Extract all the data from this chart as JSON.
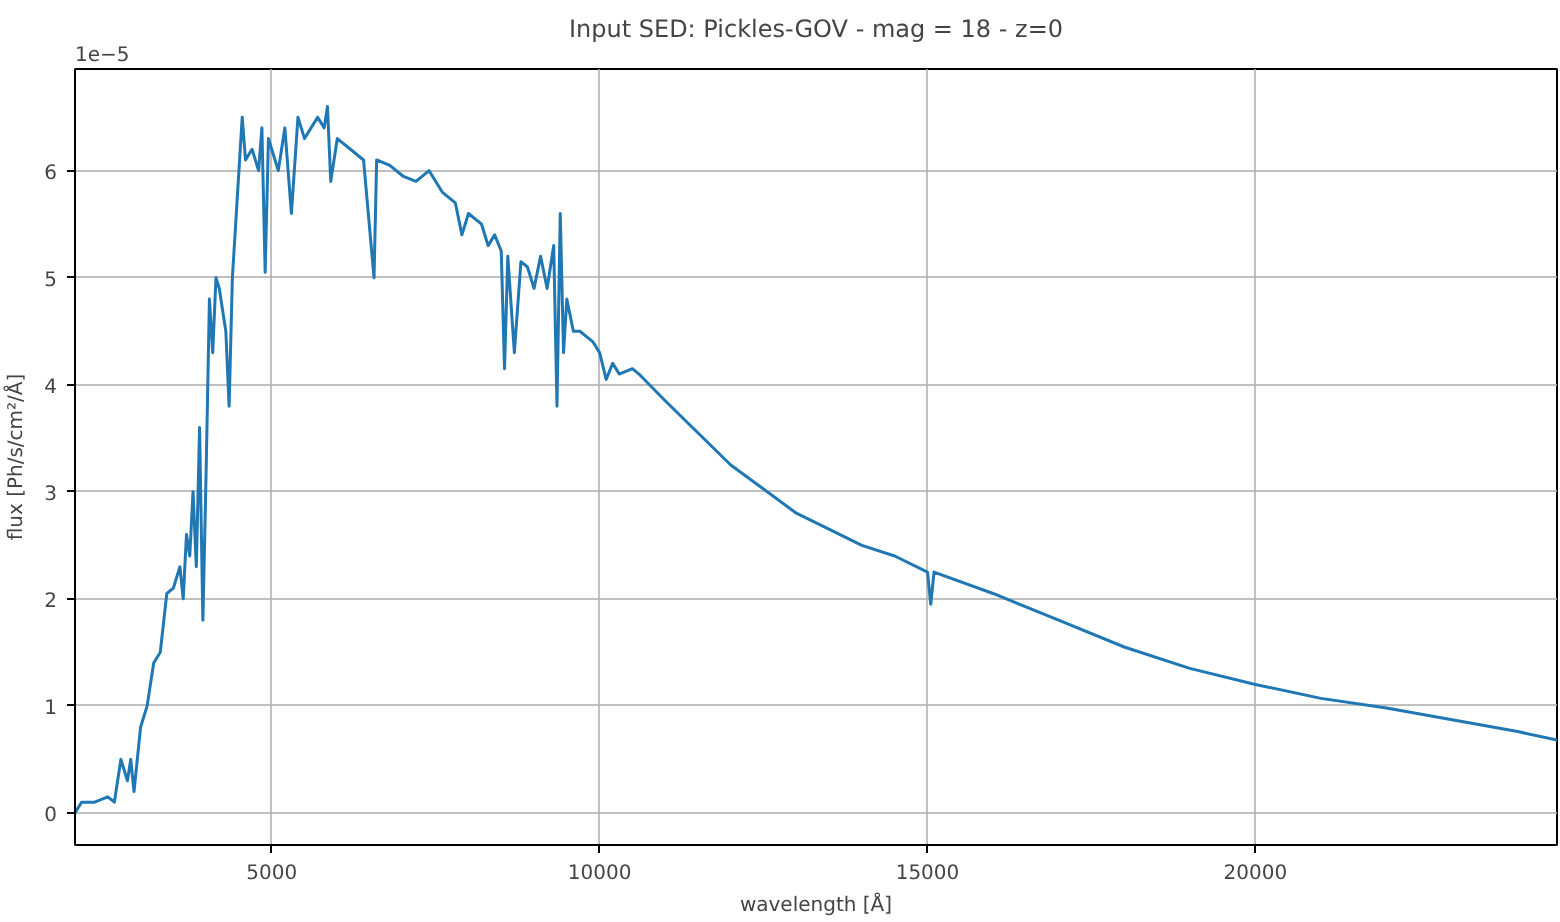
{
  "chart_data": {
    "type": "line",
    "title": "Input SED: Pickles-GOV - mag = 18 - z=0",
    "xlabel": "wavelength [Å]",
    "ylabel": "flux [Ph/s/cm²/Å]",
    "annotations": [
      "1e−5"
    ],
    "x": [
      2000,
      2100,
      2300,
      2500,
      2600,
      2700,
      2800,
      2850,
      2900,
      3000,
      3100,
      3200,
      3300,
      3400,
      3500,
      3600,
      3650,
      3700,
      3750,
      3800,
      3850,
      3900,
      3950,
      4000,
      4050,
      4100,
      4150,
      4200,
      4300,
      4350,
      4400,
      4450,
      4500,
      4550,
      4600,
      4700,
      4800,
      4850,
      4900,
      4950,
      5000,
      5100,
      5200,
      5300,
      5400,
      5500,
      5600,
      5700,
      5800,
      5850,
      5900,
      6000,
      6200,
      6400,
      6560,
      6600,
      6800,
      7000,
      7200,
      7400,
      7600,
      7800,
      7900,
      8000,
      8200,
      8300,
      8400,
      8500,
      8550,
      8600,
      8700,
      8800,
      8900,
      9000,
      9100,
      9200,
      9300,
      9350,
      9400,
      9450,
      9500,
      9600,
      9700,
      9800,
      9900,
      10000,
      10100,
      10200,
      10300,
      10500,
      10600,
      11000,
      12000,
      13000,
      14000,
      14500,
      15000,
      15050,
      15100,
      16000,
      17000,
      18000,
      19000,
      20000,
      21000,
      22000,
      23000,
      24000,
      24600
    ],
    "series": [
      {
        "color": "#1f77b4",
        "values": [
          0.0,
          0.1,
          0.1,
          0.15,
          0.1,
          0.5,
          0.3,
          0.5,
          0.2,
          0.8,
          1.0,
          1.4,
          1.5,
          2.05,
          2.1,
          2.3,
          2.0,
          2.6,
          2.4,
          3.0,
          2.3,
          3.6,
          1.8,
          3.2,
          4.8,
          4.3,
          5.0,
          4.9,
          4.5,
          3.8,
          5.0,
          5.5,
          6.0,
          6.5,
          6.1,
          6.2,
          6.0,
          6.4,
          5.05,
          6.3,
          6.2,
          6.0,
          6.4,
          5.6,
          6.5,
          6.3,
          6.4,
          6.5,
          6.4,
          6.6,
          5.9,
          6.3,
          6.2,
          6.1,
          5.0,
          6.1,
          6.05,
          5.95,
          5.9,
          6.0,
          5.8,
          5.7,
          5.4,
          5.6,
          5.5,
          5.3,
          5.4,
          5.25,
          4.15,
          5.2,
          4.3,
          5.15,
          5.1,
          4.9,
          5.2,
          4.9,
          5.3,
          3.8,
          5.6,
          4.3,
          4.8,
          4.5,
          4.5,
          4.45,
          4.4,
          4.3,
          4.05,
          4.2,
          4.1,
          4.15,
          4.1,
          3.85,
          3.25,
          2.8,
          2.5,
          2.4,
          2.25,
          1.95,
          2.25,
          2.05,
          1.8,
          1.55,
          1.35,
          1.2,
          1.07,
          0.98,
          0.87,
          0.76,
          0.68
        ]
      }
    ],
    "xlim": [
      2000,
      24600
    ],
    "ylim": [
      -0.3,
      6.95
    ],
    "xticks": [
      5000,
      10000,
      15000,
      20000
    ],
    "yticks": [
      0,
      1,
      2,
      3,
      4,
      5,
      6
    ],
    "grid": true,
    "marker": "none",
    "line_style": "solid"
  }
}
